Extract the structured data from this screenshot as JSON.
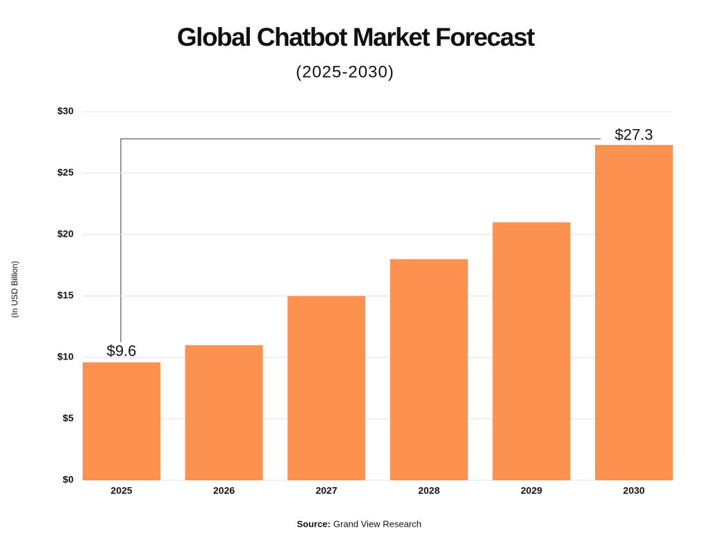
{
  "chart_data": {
    "type": "bar",
    "title": "Global Chatbot Market Forecast",
    "subtitle": "(2025-2030)",
    "y_label": "(In USD Billion)",
    "source_label": "Source:",
    "source_text": "Grand View Research",
    "categories": [
      "2025",
      "2026",
      "2027",
      "2028",
      "2029",
      "2030"
    ],
    "values": [
      9.6,
      11,
      15,
      18,
      21,
      27.3
    ],
    "value_labels": [
      "$9.6",
      null,
      null,
      null,
      null,
      "$27.3"
    ],
    "color": "#fd9150",
    "ylim": [
      0,
      30
    ],
    "yticks": [
      {
        "value": 0,
        "label": "$0"
      },
      {
        "value": 5,
        "label": "$5"
      },
      {
        "value": 10,
        "label": "$10"
      },
      {
        "value": 15,
        "label": "$15"
      },
      {
        "value": 20,
        "label": "$20"
      },
      {
        "value": 25,
        "label": "$25"
      },
      {
        "value": 30,
        "label": "$30"
      }
    ],
    "grid": true
  }
}
